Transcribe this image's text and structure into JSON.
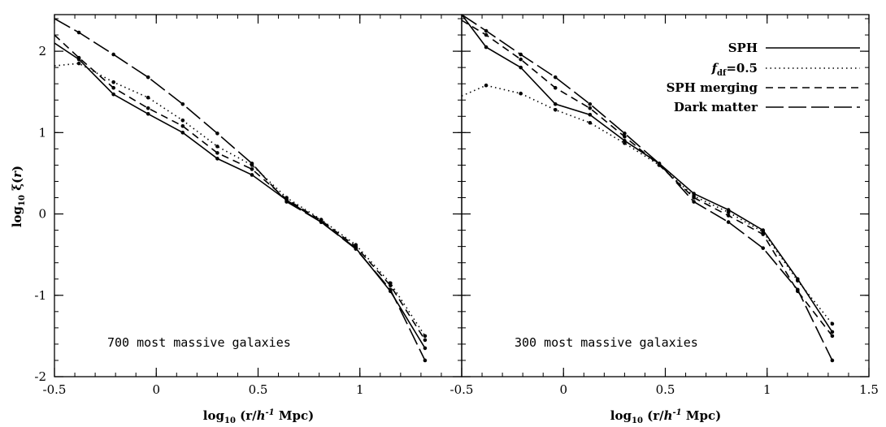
{
  "chart_data": [
    {
      "type": "line",
      "annotation": "700 most massive galaxies",
      "xlabel": "log10 (r/h^-1 Mpc)",
      "ylabel": "log10 ξ(r)",
      "xlim": [
        -0.5,
        1.5
      ],
      "ylim": [
        -2,
        2.45
      ],
      "xticks": [
        "-0.5",
        "0",
        "0.5",
        "1"
      ],
      "yticks": [
        "-2",
        "-1",
        "0",
        "1",
        "2"
      ],
      "series": [
        {
          "name": "SPH",
          "style": "solid",
          "x": [
            -0.5,
            -0.38,
            -0.21,
            -0.04,
            0.13,
            0.3,
            0.47,
            0.64,
            0.81,
            0.98,
            1.15,
            1.32
          ],
          "y": [
            2.1,
            1.9,
            1.47,
            1.23,
            1.0,
            0.68,
            0.48,
            0.17,
            -0.1,
            -0.42,
            -0.95,
            -1.65
          ]
        },
        {
          "name": "f_df=0.5",
          "style": "dotted",
          "x": [
            -0.5,
            -0.38,
            -0.21,
            -0.04,
            0.13,
            0.3,
            0.47,
            0.64,
            0.81,
            0.98,
            1.15,
            1.32
          ],
          "y": [
            1.82,
            1.85,
            1.62,
            1.43,
            1.15,
            0.83,
            0.6,
            0.2,
            -0.07,
            -0.38,
            -0.85,
            -1.5
          ]
        },
        {
          "name": "SPH merging",
          "style": "dashed",
          "x": [
            -0.5,
            -0.38,
            -0.21,
            -0.04,
            0.13,
            0.3,
            0.47,
            0.64,
            0.81,
            0.98,
            1.15,
            1.32
          ],
          "y": [
            2.2,
            1.92,
            1.55,
            1.3,
            1.08,
            0.75,
            0.55,
            0.18,
            -0.08,
            -0.4,
            -0.88,
            -1.55
          ]
        },
        {
          "name": "Dark matter",
          "style": "longdash",
          "x": [
            -0.5,
            -0.38,
            -0.21,
            -0.04,
            0.13,
            0.3,
            0.47,
            0.64,
            0.81,
            0.98,
            1.15,
            1.32
          ],
          "y": [
            2.4,
            2.23,
            1.96,
            1.68,
            1.35,
            0.99,
            0.62,
            0.15,
            -0.1,
            -0.43,
            -0.93,
            -1.8
          ]
        }
      ]
    },
    {
      "type": "line",
      "annotation": "300 most massive galaxies",
      "xlabel": "log10 (r/h^-1 Mpc)",
      "xlim": [
        -0.5,
        1.5
      ],
      "ylim": [
        -2,
        2.45
      ],
      "xticks": [
        "-0.5",
        "0",
        "0.5",
        "1",
        "1.5"
      ],
      "legend_position": "top-right",
      "series": [
        {
          "name": "SPH",
          "style": "solid",
          "x": [
            -0.5,
            -0.38,
            -0.21,
            -0.04,
            0.13,
            0.3,
            0.47,
            0.64,
            0.81,
            0.98,
            1.15,
            1.32
          ],
          "y": [
            2.45,
            2.05,
            1.8,
            1.35,
            1.22,
            0.9,
            0.62,
            0.25,
            0.05,
            -0.2,
            -0.8,
            -1.45
          ]
        },
        {
          "name": "f_df=0.5",
          "style": "dotted",
          "x": [
            -0.5,
            -0.38,
            -0.21,
            -0.04,
            0.13,
            0.3,
            0.47,
            0.64,
            0.81,
            0.98,
            1.15,
            1.32
          ],
          "y": [
            1.45,
            1.58,
            1.48,
            1.28,
            1.12,
            0.87,
            0.6,
            0.22,
            0.02,
            -0.22,
            -0.82,
            -1.35
          ]
        },
        {
          "name": "SPH merging",
          "style": "dashed",
          "x": [
            -0.5,
            -0.38,
            -0.21,
            -0.04,
            0.13,
            0.3,
            0.47,
            0.64,
            0.81,
            0.98,
            1.15,
            1.32
          ],
          "y": [
            2.38,
            2.2,
            1.9,
            1.55,
            1.3,
            0.95,
            0.6,
            0.2,
            -0.02,
            -0.25,
            -0.95,
            -1.5
          ]
        },
        {
          "name": "Dark matter",
          "style": "longdash",
          "x": [
            -0.5,
            -0.38,
            -0.21,
            -0.04,
            0.13,
            0.3,
            0.47,
            0.64,
            0.81,
            0.98,
            1.15,
            1.32
          ],
          "y": [
            2.45,
            2.25,
            1.96,
            1.68,
            1.35,
            0.99,
            0.62,
            0.15,
            -0.1,
            -0.42,
            -0.93,
            -1.8
          ]
        }
      ]
    }
  ]
}
